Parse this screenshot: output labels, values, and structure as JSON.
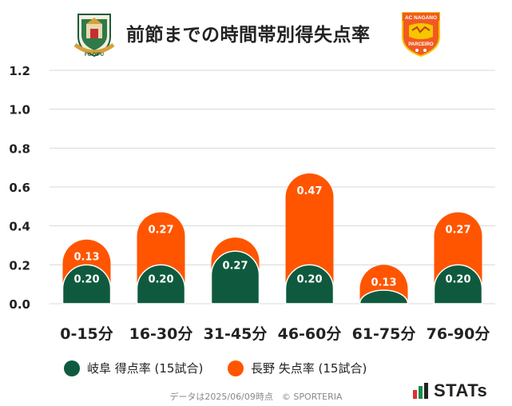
{
  "header": {
    "title": "前節までの時間帯別得失点率"
  },
  "logos": {
    "left_text": "FC GIFU",
    "right_top": "AC NAGANO",
    "right_bottom": "PARCEIRO"
  },
  "colors": {
    "scored": "#0f5a3e",
    "conceded": "#ff5500",
    "grid": "#d8d8d8",
    "text": "#222222"
  },
  "chart_data": {
    "type": "bar",
    "categories": [
      "0-15分",
      "16-30分",
      "31-45分",
      "46-60分",
      "61-75分",
      "76-90分"
    ],
    "series": [
      {
        "name": "岐阜 得点率 (15試合)",
        "values": [
          0.2,
          0.2,
          0.27,
          0.2,
          0.07,
          0.2
        ],
        "labels": [
          "0.20",
          "0.20",
          "0.27",
          "0.20",
          "",
          "0.20"
        ]
      },
      {
        "name": "長野 失点率 (15試合)",
        "values": [
          0.13,
          0.27,
          0.07,
          0.47,
          0.13,
          0.27
        ],
        "labels": [
          "0.13",
          "0.27",
          "",
          "0.47",
          "0.13",
          "0.27"
        ]
      }
    ],
    "stacked": true,
    "yticks": [
      "0.0",
      "0.2",
      "0.4",
      "0.6",
      "0.8",
      "1.0",
      "1.2"
    ],
    "ylim": [
      0,
      1.2
    ],
    "grid": true,
    "legend_position": "bottom"
  },
  "legend": {
    "scored_label": "岐阜 得点率 (15試合)",
    "conceded_label": "長野 失点率 (15試合)"
  },
  "footer": {
    "note": "データは2025/06/09時点　© SPORTERIA"
  },
  "brand": {
    "name": "STATs"
  }
}
